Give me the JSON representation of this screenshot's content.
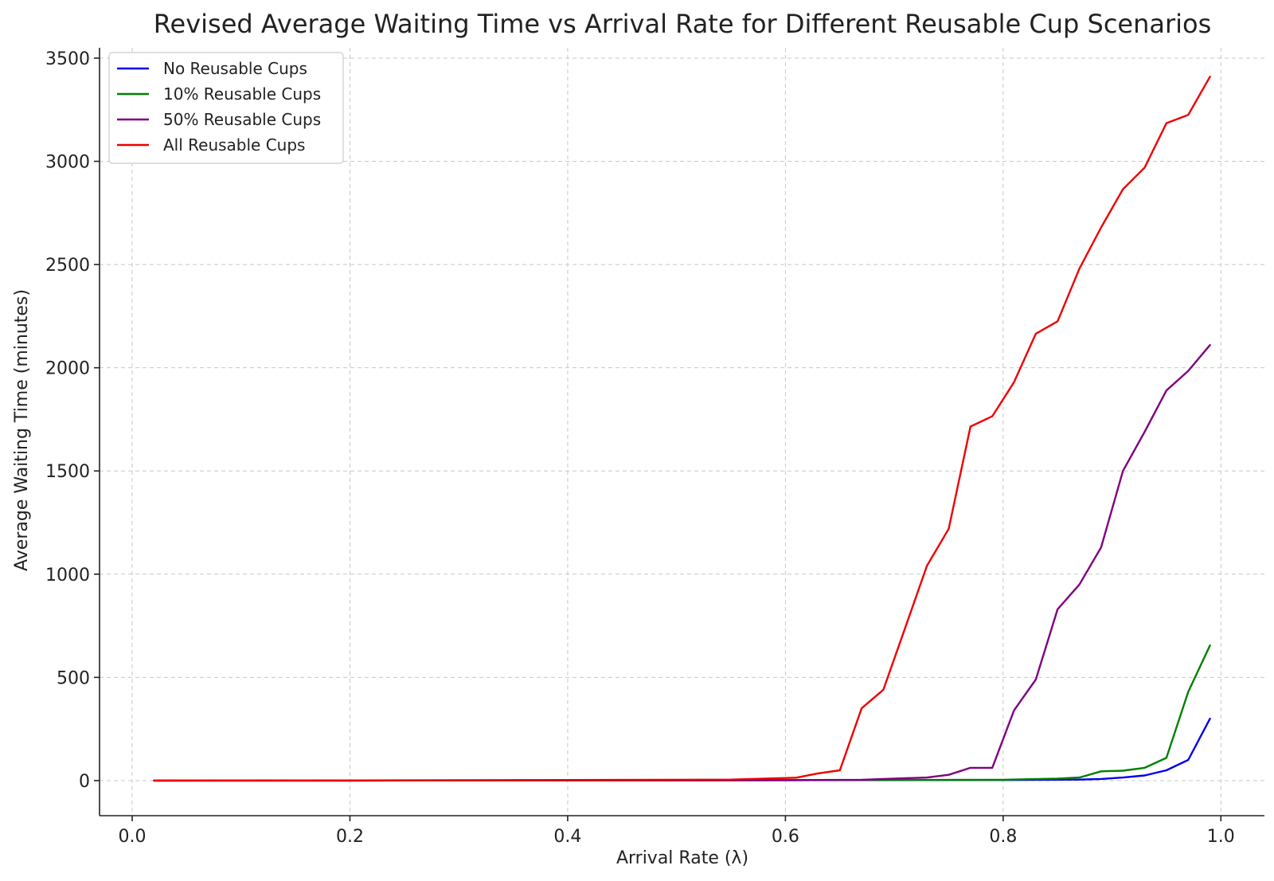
{
  "chart_data": {
    "type": "line",
    "title": "Revised Average Waiting Time vs Arrival Rate for Different Reusable Cup Scenarios",
    "xlabel": "Arrival Rate (λ)",
    "ylabel": "Average Waiting Time (minutes)",
    "xlim": [
      -0.03,
      1.04
    ],
    "ylim": [
      -170,
      3550
    ],
    "xticks": [
      0.0,
      0.2,
      0.4,
      0.6,
      0.8,
      1.0
    ],
    "xtick_labels": [
      "0.0",
      "0.2",
      "0.4",
      "0.6",
      "0.8",
      "1.0"
    ],
    "yticks": [
      0,
      500,
      1000,
      1500,
      2000,
      2500,
      3000,
      3500
    ],
    "ytick_labels": [
      "0",
      "500",
      "1000",
      "1500",
      "2000",
      "2500",
      "3000",
      "3500"
    ],
    "grid": true,
    "legend_position": "top-left",
    "series": [
      {
        "name": "No Reusable Cups",
        "color": "#0000ee",
        "x": [
          0.02,
          0.2,
          0.4,
          0.6,
          0.8,
          0.87,
          0.89,
          0.91,
          0.93,
          0.95,
          0.97,
          0.99
        ],
        "y": [
          0,
          0,
          1,
          2,
          3,
          5,
          8,
          15,
          25,
          50,
          100,
          300
        ]
      },
      {
        "name": "10% Reusable Cups",
        "color": "#008000",
        "x": [
          0.02,
          0.2,
          0.4,
          0.6,
          0.8,
          0.85,
          0.87,
          0.89,
          0.91,
          0.93,
          0.95,
          0.97,
          0.99
        ],
        "y": [
          0,
          0,
          1,
          2,
          4,
          10,
          15,
          45,
          48,
          62,
          110,
          430,
          655
        ]
      },
      {
        "name": "50% Reusable Cups",
        "color": "#800080",
        "x": [
          0.02,
          0.2,
          0.4,
          0.6,
          0.67,
          0.69,
          0.73,
          0.75,
          0.77,
          0.79,
          0.81,
          0.83,
          0.85,
          0.87,
          0.89,
          0.91,
          0.93,
          0.95,
          0.97,
          0.99
        ],
        "y": [
          0,
          0,
          1,
          2,
          4,
          8,
          15,
          28,
          62,
          62,
          340,
          490,
          830,
          950,
          1130,
          1500,
          1690,
          1890,
          1985,
          2110
        ]
      },
      {
        "name": "All Reusable Cups",
        "color": "#ee0000",
        "x": [
          0.02,
          0.2,
          0.4,
          0.55,
          0.61,
          0.63,
          0.65,
          0.67,
          0.69,
          0.71,
          0.73,
          0.75,
          0.77,
          0.79,
          0.81,
          0.83,
          0.85,
          0.87,
          0.89,
          0.91,
          0.93,
          0.95,
          0.97,
          0.99
        ],
        "y": [
          0,
          1,
          3,
          5,
          14,
          35,
          50,
          350,
          440,
          740,
          1040,
          1220,
          1715,
          1765,
          1930,
          2165,
          2225,
          2480,
          2680,
          2865,
          2970,
          3185,
          3225,
          3410
        ]
      }
    ]
  }
}
